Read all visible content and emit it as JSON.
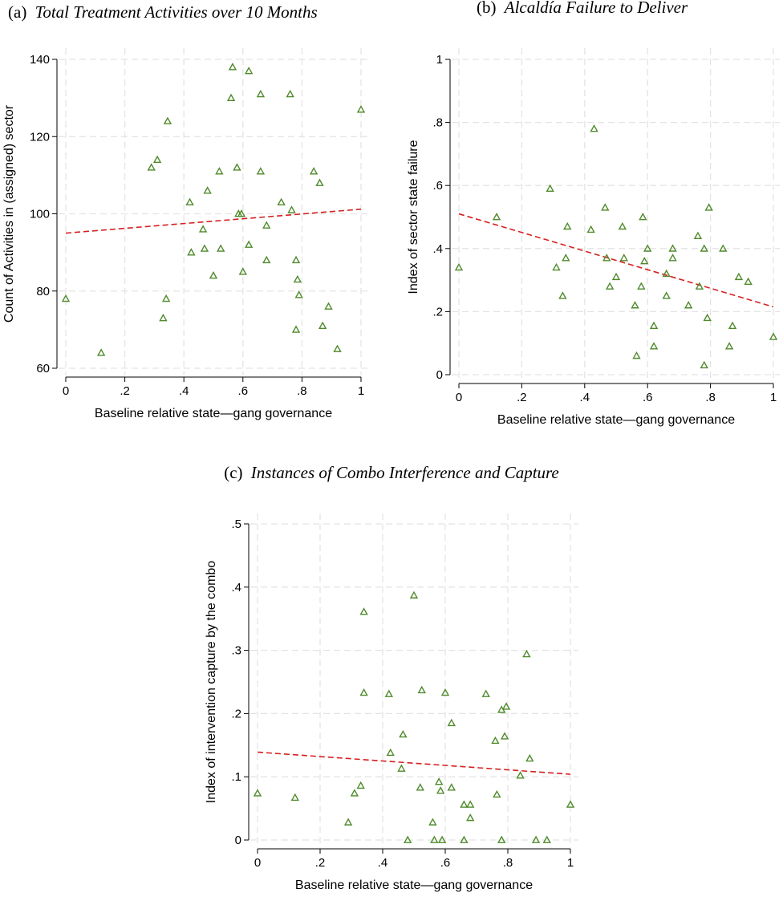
{
  "chart_data": [
    {
      "id": "a",
      "type": "scatter",
      "title_prefix": "(a)",
      "title": "Total Treatment Activities over 10 Months",
      "xlabel": "Baseline relative state—gang governance",
      "ylabel": "Count of Activities in (assigned) sector",
      "xlim": [
        0,
        1
      ],
      "ylim": [
        60,
        140
      ],
      "xticks": [
        0,
        0.2,
        0.4,
        0.6,
        0.8,
        1
      ],
      "xtick_labels": [
        "0",
        ".2",
        ".4",
        ".6",
        ".8",
        "1"
      ],
      "yticks": [
        60,
        80,
        100,
        120,
        140
      ],
      "ytick_labels": [
        "60",
        "80",
        "100",
        "120",
        "140"
      ],
      "points": [
        [
          0,
          78
        ],
        [
          0.12,
          64
        ],
        [
          0.29,
          112
        ],
        [
          0.31,
          114
        ],
        [
          0.33,
          73
        ],
        [
          0.34,
          78
        ],
        [
          0.345,
          124
        ],
        [
          0.42,
          103
        ],
        [
          0.425,
          90
        ],
        [
          0.465,
          96
        ],
        [
          0.47,
          91
        ],
        [
          0.48,
          106
        ],
        [
          0.5,
          84
        ],
        [
          0.52,
          111
        ],
        [
          0.525,
          91
        ],
        [
          0.56,
          130
        ],
        [
          0.565,
          138
        ],
        [
          0.58,
          112
        ],
        [
          0.585,
          100
        ],
        [
          0.595,
          100
        ],
        [
          0.6,
          85
        ],
        [
          0.62,
          92
        ],
        [
          0.62,
          137
        ],
        [
          0.66,
          111
        ],
        [
          0.66,
          131
        ],
        [
          0.68,
          97
        ],
        [
          0.68,
          88
        ],
        [
          0.73,
          103
        ],
        [
          0.76,
          131
        ],
        [
          0.765,
          101
        ],
        [
          0.78,
          88
        ],
        [
          0.78,
          70
        ],
        [
          0.785,
          83
        ],
        [
          0.79,
          79
        ],
        [
          0.84,
          111
        ],
        [
          0.86,
          108
        ],
        [
          0.87,
          71
        ],
        [
          0.89,
          76
        ],
        [
          0.92,
          65
        ],
        [
          1.0,
          127
        ]
      ],
      "fit_line": {
        "x": [
          0,
          1
        ],
        "y": [
          95,
          101.2
        ]
      }
    },
    {
      "id": "b",
      "type": "scatter",
      "title_prefix": "(b)",
      "title": "Alcaldía Failure to Deliver",
      "xlabel": "Baseline relative state—gang governance",
      "ylabel": "Index of sector state failure",
      "xlim": [
        0,
        1
      ],
      "ylim": [
        0,
        1
      ],
      "xticks": [
        0,
        0.2,
        0.4,
        0.6,
        0.8,
        1
      ],
      "xtick_labels": [
        "0",
        ".2",
        ".4",
        ".6",
        ".8",
        "1"
      ],
      "yticks": [
        0,
        0.2,
        0.4,
        0.6,
        0.8,
        1
      ],
      "ytick_labels": [
        "0",
        ".2",
        ".4",
        ".6",
        ".8",
        "1"
      ],
      "points": [
        [
          0,
          0.34
        ],
        [
          0.12,
          0.5
        ],
        [
          0.29,
          0.59
        ],
        [
          0.31,
          0.34
        ],
        [
          0.33,
          0.25
        ],
        [
          0.34,
          0.37
        ],
        [
          0.345,
          0.47
        ],
        [
          0.42,
          0.46
        ],
        [
          0.43,
          0.78
        ],
        [
          0.465,
          0.53
        ],
        [
          0.47,
          0.37
        ],
        [
          0.48,
          0.28
        ],
        [
          0.5,
          0.31
        ],
        [
          0.52,
          0.47
        ],
        [
          0.525,
          0.37
        ],
        [
          0.56,
          0.22
        ],
        [
          0.565,
          0.06
        ],
        [
          0.58,
          0.28
        ],
        [
          0.585,
          0.5
        ],
        [
          0.59,
          0.36
        ],
        [
          0.6,
          0.4
        ],
        [
          0.62,
          0.155
        ],
        [
          0.62,
          0.09
        ],
        [
          0.66,
          0.32
        ],
        [
          0.66,
          0.25
        ],
        [
          0.68,
          0.4
        ],
        [
          0.68,
          0.37
        ],
        [
          0.73,
          0.22
        ],
        [
          0.76,
          0.44
        ],
        [
          0.765,
          0.28
        ],
        [
          0.78,
          0.4
        ],
        [
          0.78,
          0.03
        ],
        [
          0.79,
          0.18
        ],
        [
          0.795,
          0.53
        ],
        [
          0.84,
          0.4
        ],
        [
          0.86,
          0.09
        ],
        [
          0.87,
          0.155
        ],
        [
          0.89,
          0.31
        ],
        [
          0.92,
          0.295
        ],
        [
          1.0,
          0.12
        ]
      ],
      "fit_line": {
        "x": [
          0,
          1
        ],
        "y": [
          0.51,
          0.215
        ]
      }
    },
    {
      "id": "c",
      "type": "scatter",
      "title_prefix": "(c)",
      "title": "Instances of Combo Interference and Capture",
      "xlabel": "Baseline relative state—gang governance",
      "ylabel": "Index of intervention capture by the combo",
      "xlim": [
        0,
        1
      ],
      "ylim": [
        0,
        0.5
      ],
      "xticks": [
        0,
        0.2,
        0.4,
        0.6,
        0.8,
        1
      ],
      "xtick_labels": [
        "0",
        ".2",
        ".4",
        ".6",
        ".8",
        "1"
      ],
      "yticks": [
        0,
        0.1,
        0.2,
        0.3,
        0.4,
        0.5
      ],
      "ytick_labels": [
        "0",
        ".1",
        ".2",
        ".3",
        ".4",
        ".5"
      ],
      "points": [
        [
          0,
          0.074
        ],
        [
          0.12,
          0.067
        ],
        [
          0.29,
          0.028
        ],
        [
          0.31,
          0.074
        ],
        [
          0.33,
          0.086
        ],
        [
          0.34,
          0.233
        ],
        [
          0.34,
          0.361
        ],
        [
          0.42,
          0.231
        ],
        [
          0.425,
          0.138
        ],
        [
          0.46,
          0.113
        ],
        [
          0.465,
          0.167
        ],
        [
          0.48,
          0.0
        ],
        [
          0.5,
          0.387
        ],
        [
          0.52,
          0.083
        ],
        [
          0.525,
          0.237
        ],
        [
          0.56,
          0.028
        ],
        [
          0.565,
          0.0
        ],
        [
          0.58,
          0.092
        ],
        [
          0.585,
          0.078
        ],
        [
          0.59,
          0.0
        ],
        [
          0.6,
          0.233
        ],
        [
          0.62,
          0.185
        ],
        [
          0.62,
          0.083
        ],
        [
          0.66,
          0.056
        ],
        [
          0.66,
          0.0
        ],
        [
          0.68,
          0.056
        ],
        [
          0.68,
          0.035
        ],
        [
          0.73,
          0.231
        ],
        [
          0.76,
          0.157
        ],
        [
          0.765,
          0.072
        ],
        [
          0.78,
          0.206
        ],
        [
          0.78,
          0.0
        ],
        [
          0.79,
          0.164
        ],
        [
          0.795,
          0.211
        ],
        [
          0.84,
          0.102
        ],
        [
          0.86,
          0.294
        ],
        [
          0.87,
          0.129
        ],
        [
          0.89,
          0.0
        ],
        [
          0.925,
          0.0
        ],
        [
          1.0,
          0.056
        ]
      ],
      "fit_line": {
        "x": [
          0,
          1
        ],
        "y": [
          0.139,
          0.104
        ]
      }
    }
  ],
  "colors": {
    "marker": "#4f8a2b",
    "fit": "#d62020",
    "grid": "#e4e4e4"
  }
}
